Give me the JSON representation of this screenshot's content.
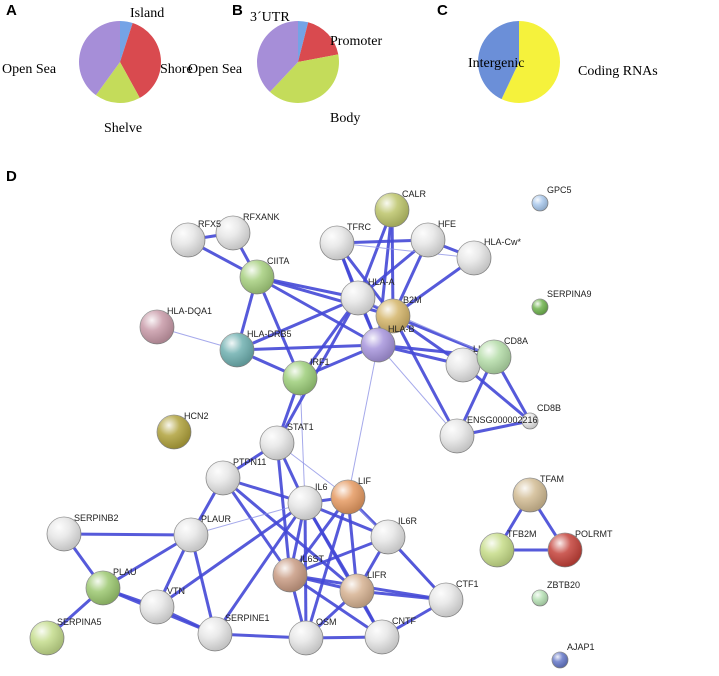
{
  "chart_data": [
    {
      "type": "pie",
      "panel": "A",
      "categories": [
        "Island",
        "Shore",
        "Shelve",
        "Open Sea"
      ],
      "values": [
        5,
        37,
        18,
        40
      ],
      "colors": [
        "#74a3e6",
        "#d94a4f",
        "#c4dc5a",
        "#a68ed8"
      ]
    },
    {
      "type": "pie",
      "panel": "B",
      "categories": [
        "3´UTR",
        "Promoter",
        "Body",
        "Open Sea"
      ],
      "values": [
        4,
        18,
        40,
        38
      ],
      "colors": [
        "#74a3e6",
        "#d94a4f",
        "#c4dc5a",
        "#a68ed8"
      ]
    },
    {
      "type": "pie",
      "panel": "C",
      "categories": [
        "Coding RNAs",
        "Intergenic"
      ],
      "values": [
        57,
        43
      ],
      "colors": [
        "#f5f23c",
        "#6b8fd8"
      ]
    }
  ],
  "network": {
    "panel": "D",
    "nodes": [
      {
        "label": "RFXANK"
      },
      {
        "label": "RFX5"
      },
      {
        "label": "CALR"
      },
      {
        "label": "TFRC"
      },
      {
        "label": "HFE"
      },
      {
        "label": "HLA-Cw*"
      },
      {
        "label": "GPC5"
      },
      {
        "label": "CIITA"
      },
      {
        "label": "HLA-A"
      },
      {
        "label": "B2M"
      },
      {
        "label": "SERPINA9"
      },
      {
        "label": "HLA-DQA1"
      },
      {
        "label": "HLA-DRB5"
      },
      {
        "label": "HLA-B"
      },
      {
        "label": "LILRB1"
      },
      {
        "label": "CD8A"
      },
      {
        "label": "IRF1"
      },
      {
        "label": "HCN2"
      },
      {
        "label": "CD8B"
      },
      {
        "label": "ENSG000002216"
      },
      {
        "label": "STAT1"
      },
      {
        "label": "PTPN11"
      },
      {
        "label": "IL6"
      },
      {
        "label": "LIF"
      },
      {
        "label": "TFAM"
      },
      {
        "label": "SERPINB2"
      },
      {
        "label": "PLAUR"
      },
      {
        "label": "IL6R"
      },
      {
        "label": "TFB2M"
      },
      {
        "label": "POLRMT"
      },
      {
        "label": "IL6ST"
      },
      {
        "label": "LIFR"
      },
      {
        "label": "PLAU"
      },
      {
        "label": "VTN"
      },
      {
        "label": "CTF1"
      },
      {
        "label": "ZBTB20"
      },
      {
        "label": "SERPINA5"
      },
      {
        "label": "SERPINE1"
      },
      {
        "label": "OSM"
      },
      {
        "label": "CNTF"
      },
      {
        "label": "AJAP1"
      }
    ]
  }
}
